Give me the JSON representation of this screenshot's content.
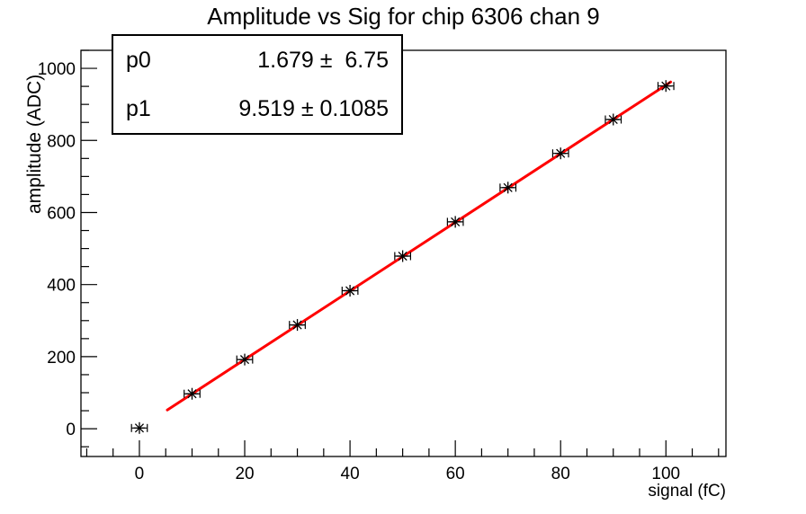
{
  "stats_box": {
    "rows": [
      {
        "param": "p0",
        "value": "1.679 ±  6.75"
      },
      {
        "param": "p1",
        "value": "9.519 ± 0.1085"
      }
    ]
  },
  "chart_data": {
    "type": "scatter",
    "title": "Amplitude vs Sig for chip 6306 chan 9",
    "xlabel": "signal (fC)",
    "ylabel": "amplitude (ADC)",
    "x": [
      0,
      10,
      20,
      30,
      40,
      50,
      60,
      70,
      80,
      90,
      100
    ],
    "y": [
      2,
      97,
      192,
      288,
      383,
      479,
      574,
      669,
      764,
      858,
      951
    ],
    "x_error": 1.5,
    "marker": "asterisk",
    "marker_color": "#000000",
    "axis_color": "#000000",
    "background_color": "#ffffff",
    "grid": false,
    "legend_position": "none",
    "fit": {
      "type": "linear",
      "p0": 1.679,
      "p0_err": 6.75,
      "p1": 9.519,
      "p1_err": 0.1085,
      "range": [
        5.3,
        100.9
      ],
      "color": "#ff0000"
    },
    "xlim": [
      -11.1,
      111.4
    ],
    "ylim": [
      -77,
      1050
    ],
    "x_major_ticks": [
      0,
      20,
      40,
      60,
      80,
      100
    ],
    "x_minor_step": 5,
    "y_major_ticks": [
      0,
      200,
      400,
      600,
      800,
      1000
    ],
    "y_minor_step": 50
  }
}
